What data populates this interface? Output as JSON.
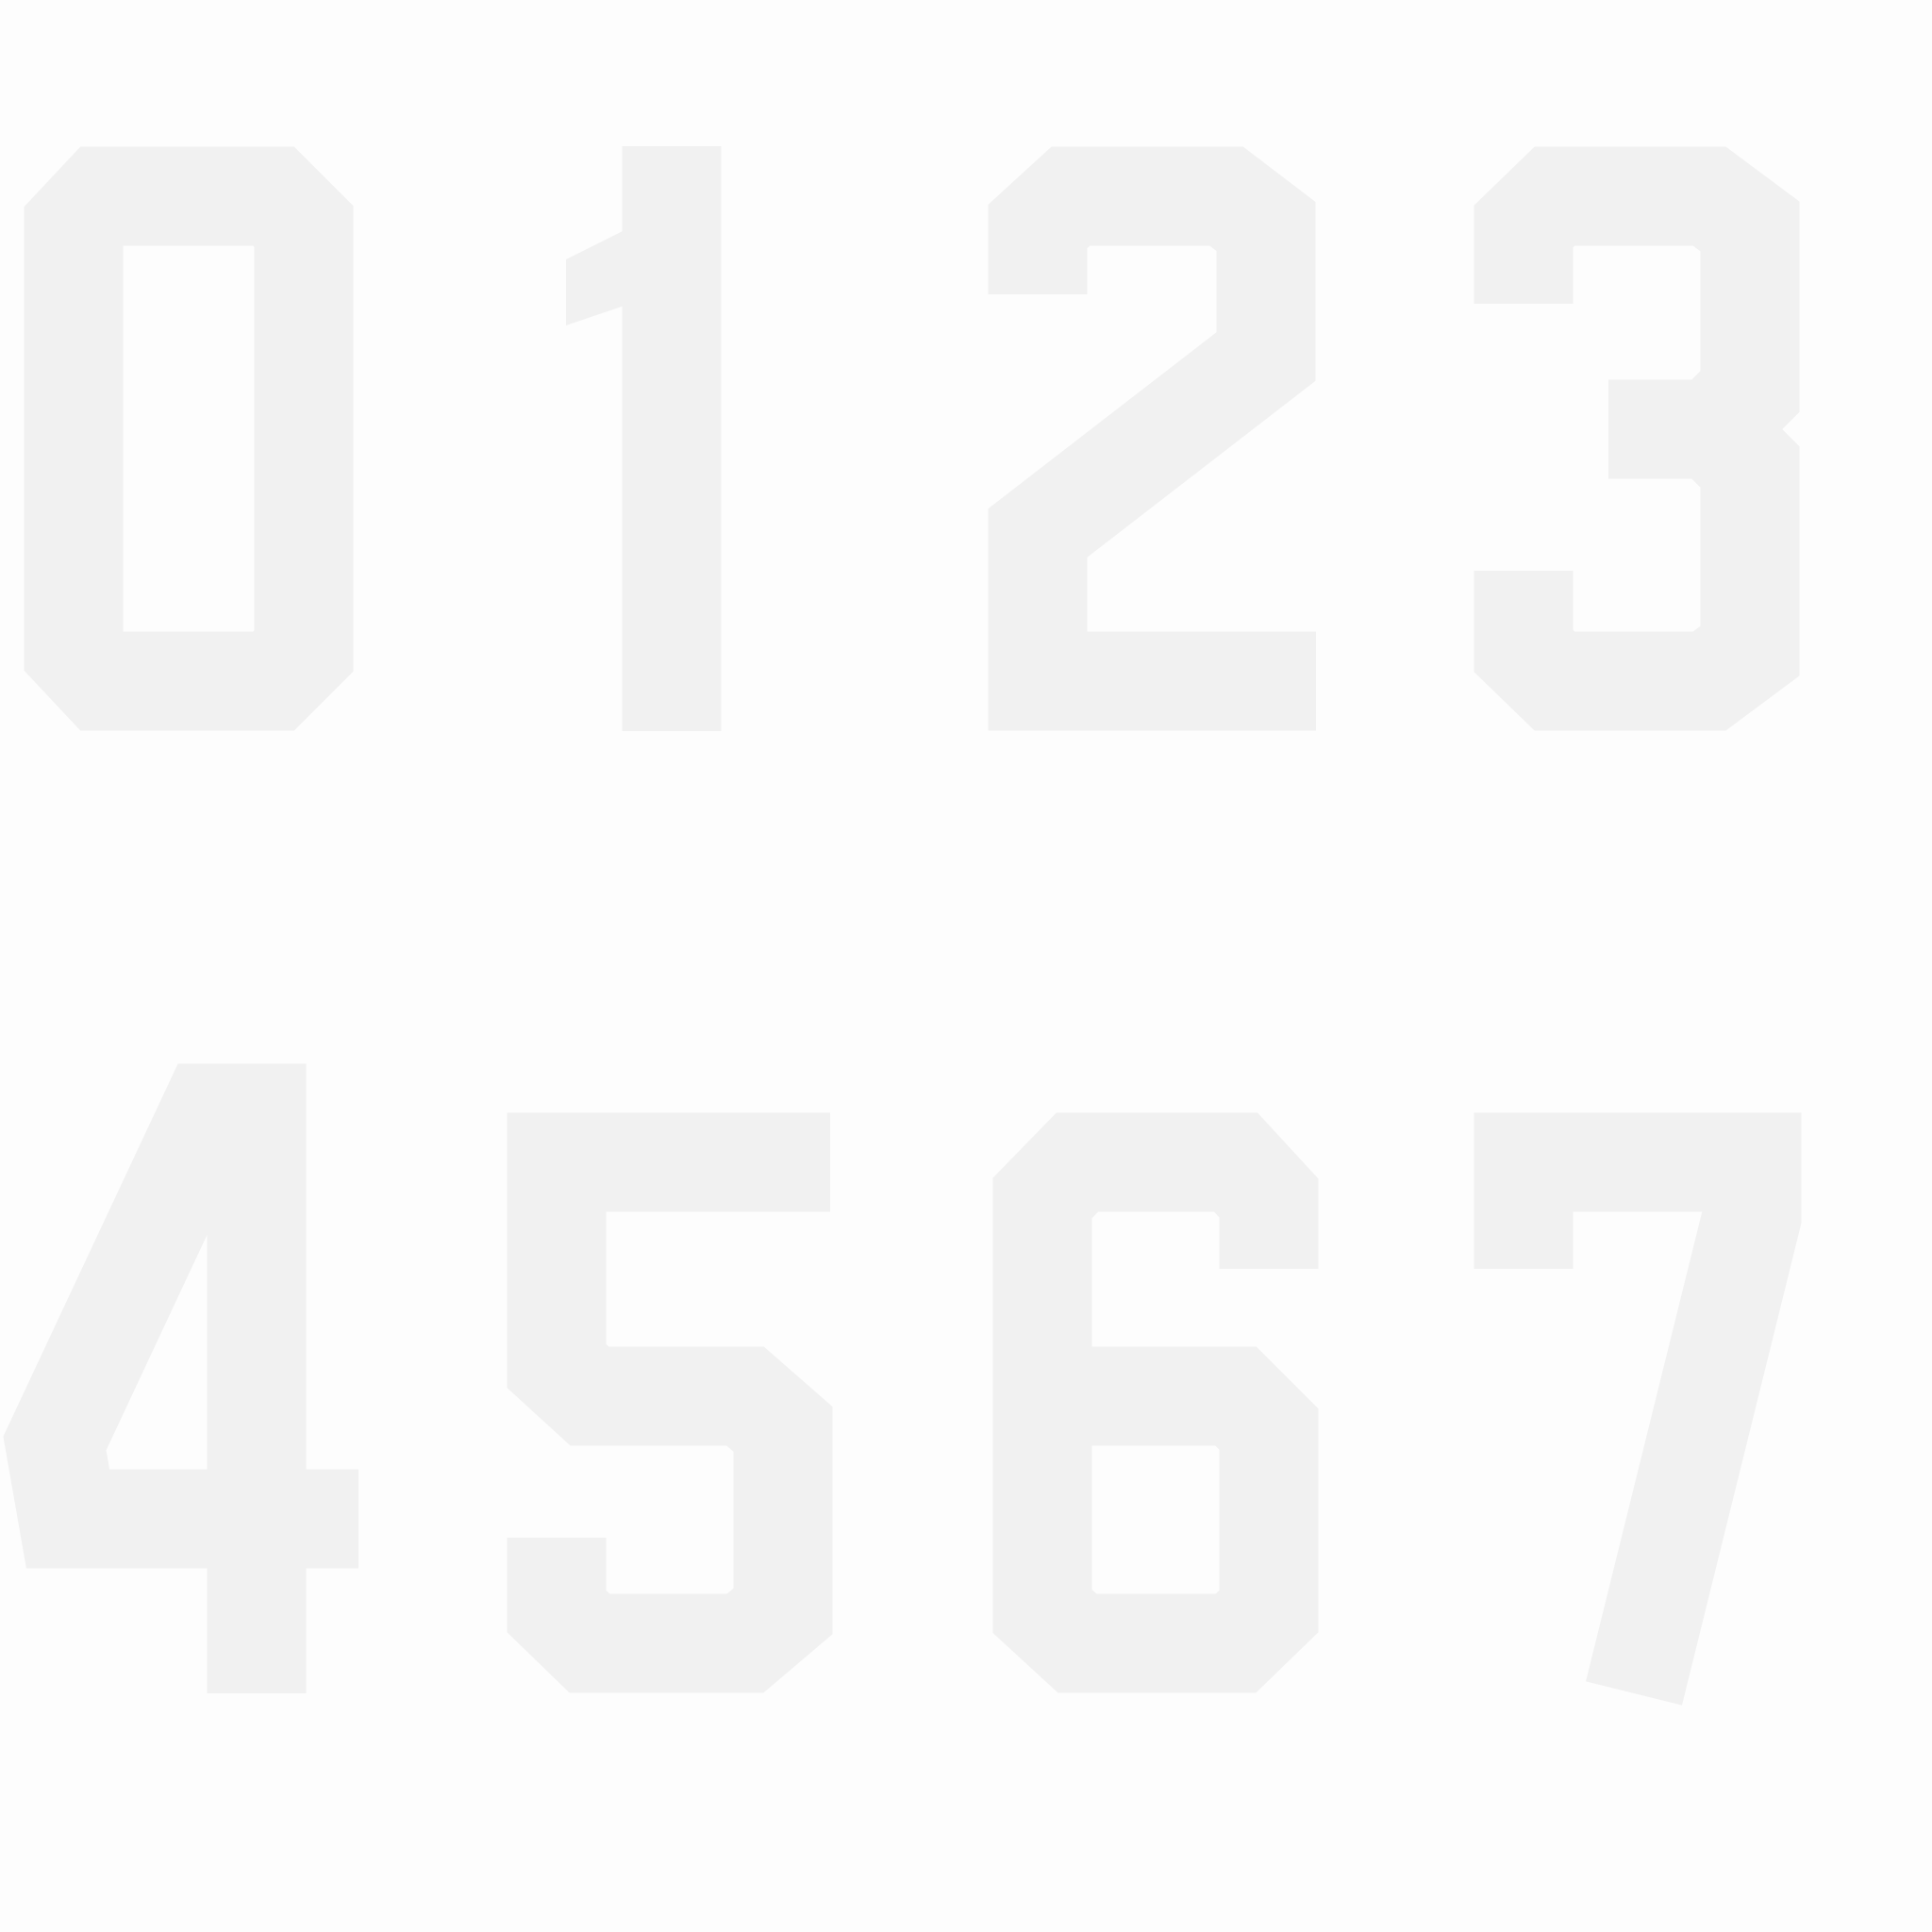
{
  "digits": [
    {
      "id": "0",
      "label": "0"
    },
    {
      "id": "1",
      "label": "1"
    },
    {
      "id": "2",
      "label": "2"
    },
    {
      "id": "3",
      "label": "3"
    },
    {
      "id": "4",
      "label": "4"
    },
    {
      "id": "5",
      "label": "5"
    },
    {
      "id": "6",
      "label": "6"
    },
    {
      "id": "7",
      "label": "7"
    }
  ],
  "colors": {
    "background": "#fdfdfd",
    "glyph": "#f1f1f1"
  }
}
